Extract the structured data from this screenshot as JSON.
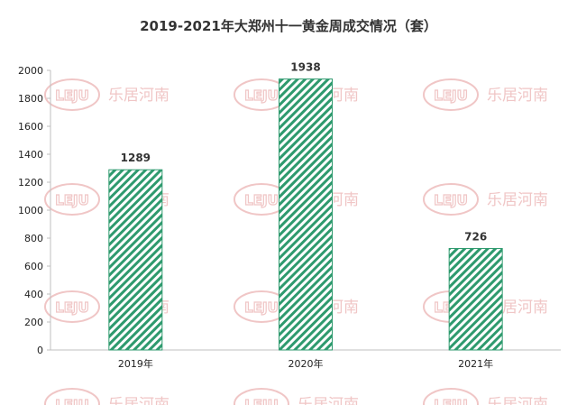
{
  "chart_data": {
    "type": "bar",
    "title": "2019-2021年大郑州十一黄金周成交情况（套）",
    "categories": [
      "2019年",
      "2020年",
      "2021年"
    ],
    "values": [
      1289,
      1938,
      726
    ],
    "data_labels": [
      "1289",
      "1938",
      "726"
    ],
    "ylim": [
      0,
      2000
    ],
    "yticks": [
      0,
      200,
      400,
      600,
      800,
      1000,
      1200,
      1400,
      1600,
      1800,
      2000
    ],
    "ytick_labels": [
      "0",
      "200",
      "400",
      "600",
      "800",
      "1000",
      "1200",
      "1400",
      "1600",
      "1800",
      "2000"
    ],
    "grid": false,
    "legend": "none",
    "bar_color": "#2e9a6e",
    "bar_fill": "diagonal-hatch"
  },
  "watermark": {
    "logo_text": "LEJU",
    "text": "乐居河南",
    "color": "#f0c6c6"
  }
}
